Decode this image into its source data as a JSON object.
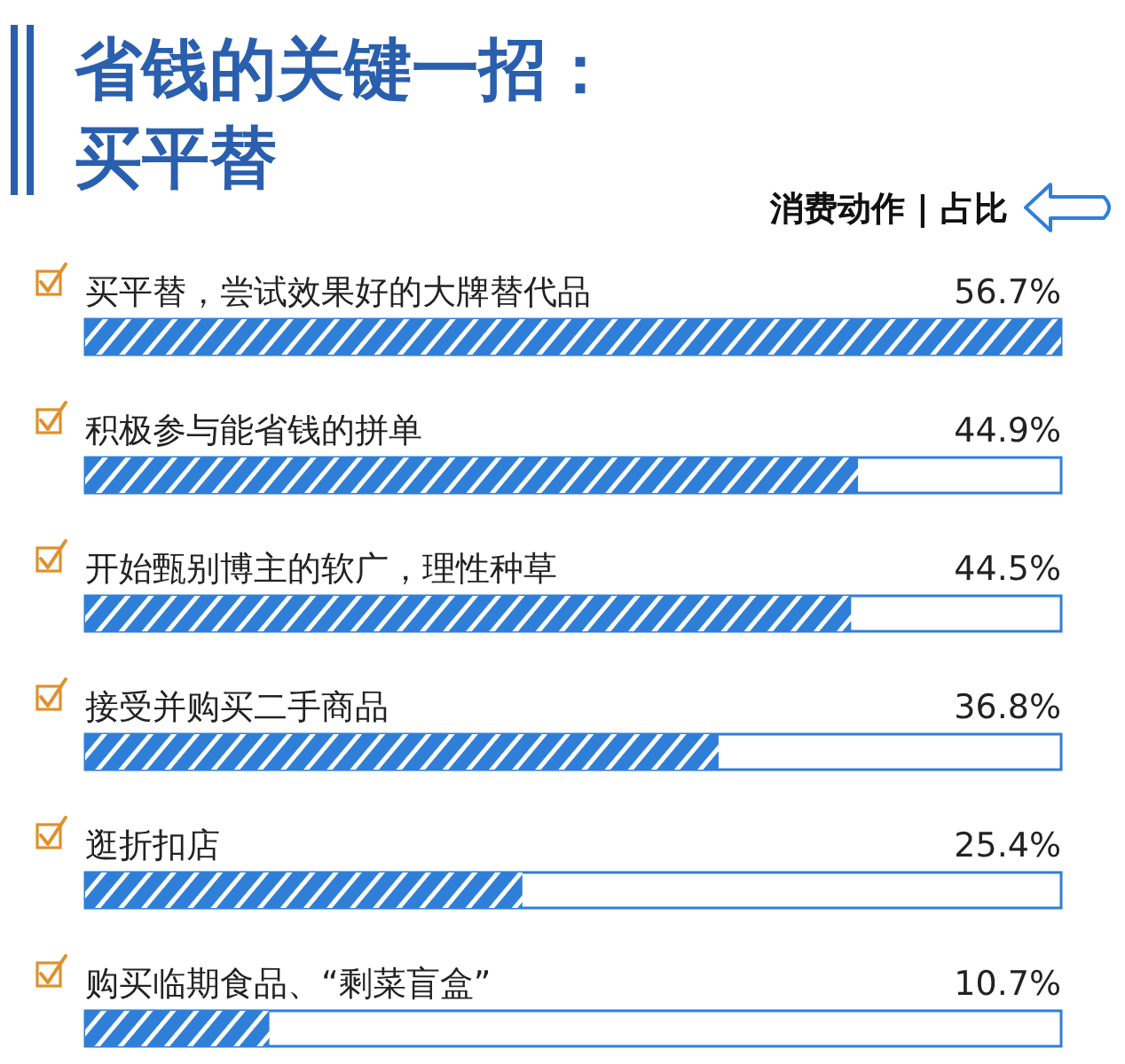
{
  "chart_data": {
    "type": "bar",
    "orientation": "horizontal",
    "title": "省钱的关键一招：买平替",
    "annotations": [
      "消费动作 | 占比"
    ],
    "categories": [
      "买平替，尝试效果好的大牌替代品",
      "积极参与能省钱的拼单",
      "开始甄别博主的软广，理性种草",
      "接受并购买二手商品",
      "逛折扣店",
      "购买临期食品、“剩菜盲盒”"
    ],
    "values": [
      56.7,
      44.9,
      44.5,
      36.8,
      25.4,
      10.7
    ],
    "value_labels": [
      "56.7%",
      "44.9%",
      "44.5%",
      "36.8%",
      "25.4%",
      "10.7%"
    ],
    "color": "#2f7fd8"
  }
}
